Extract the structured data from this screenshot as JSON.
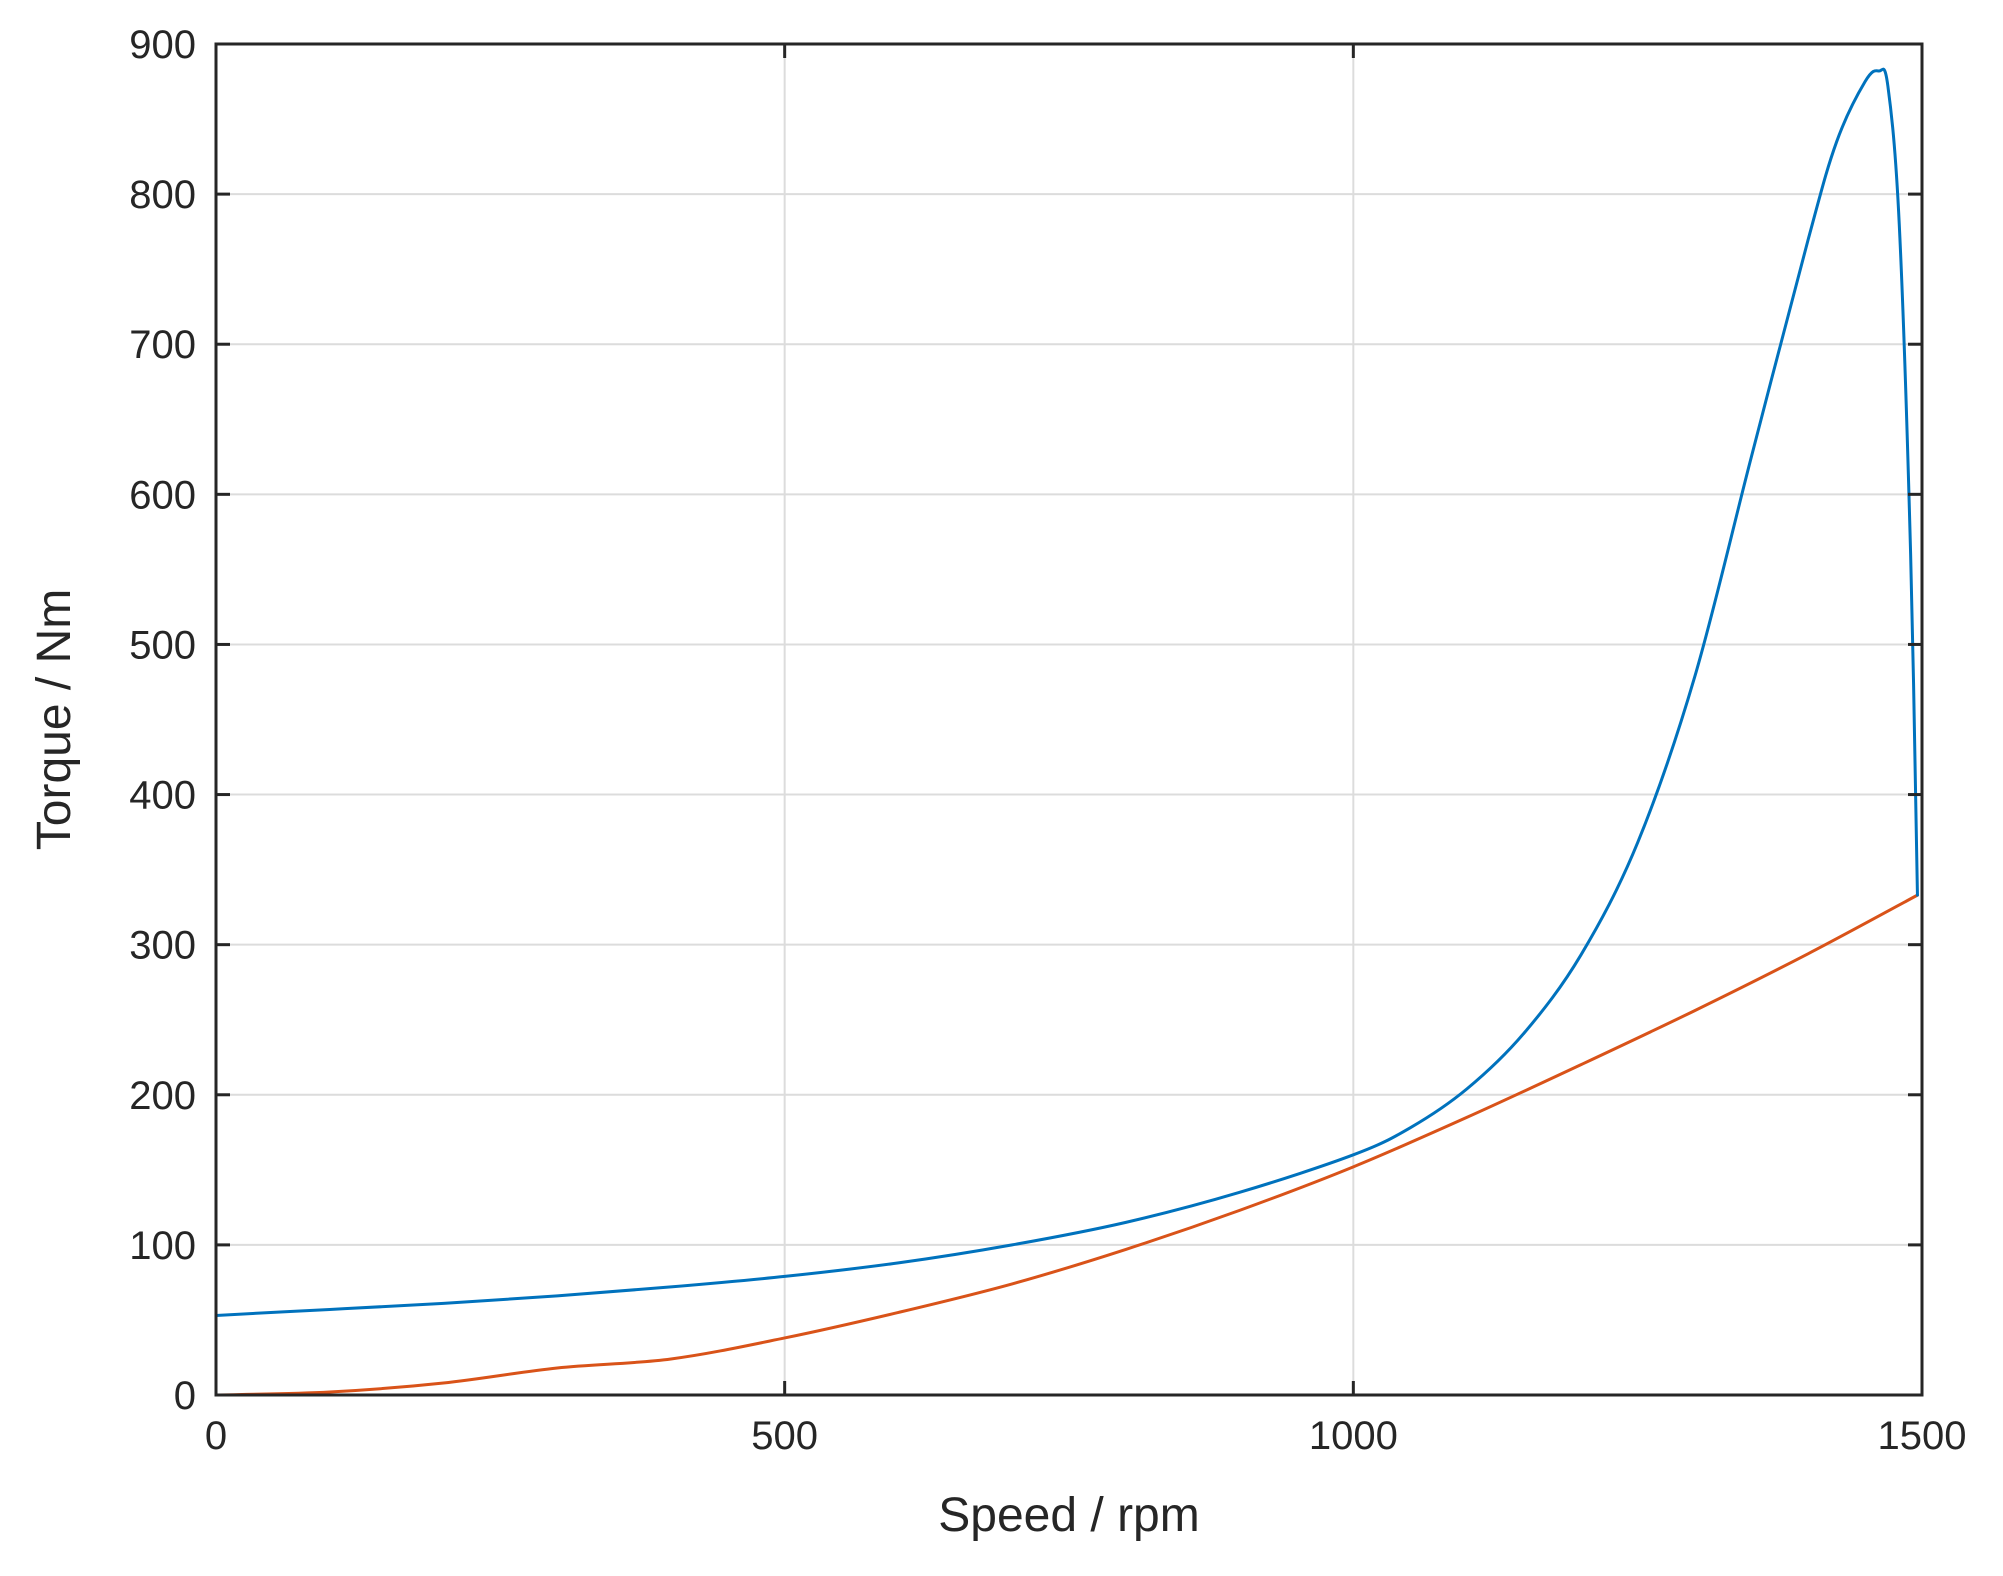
{
  "chart_data": {
    "type": "line",
    "xlabel": "Speed / rpm",
    "ylabel": "Torque / Nm",
    "xlim": [
      0,
      1500
    ],
    "ylim": [
      0,
      900
    ],
    "xticks": [
      0,
      500,
      1000,
      1500
    ],
    "yticks": [
      0,
      100,
      200,
      300,
      400,
      500,
      600,
      700,
      800,
      900
    ],
    "xtick_labels": [
      "0",
      "500",
      "1000",
      "1500"
    ],
    "ytick_labels": [
      "0",
      "100",
      "200",
      "300",
      "400",
      "500",
      "600",
      "700",
      "800",
      "900"
    ],
    "grid": true,
    "legend": false,
    "series": [
      {
        "color": "#0072BD",
        "x": [
          0,
          100,
          200,
          300,
          400,
          500,
          600,
          700,
          800,
          900,
          1000,
          1050,
          1100,
          1150,
          1200,
          1250,
          1300,
          1350,
          1400,
          1425,
          1450,
          1462,
          1470,
          1480,
          1490,
          1496
        ],
        "y": [
          53,
          57,
          61,
          66,
          72,
          79,
          88,
          100,
          115,
          135,
          160,
          178,
          204,
          241,
          293,
          368,
          478,
          625,
          770,
          835,
          875,
          882,
          872,
          780,
          560,
          333
        ]
      },
      {
        "color": "#D95319",
        "x": [
          0,
          100,
          200,
          300,
          400,
          500,
          600,
          700,
          800,
          900,
          1000,
          1100,
          1200,
          1300,
          1400,
          1496
        ],
        "y": [
          0,
          2,
          8,
          18,
          24,
          38,
          55,
          74,
          97,
          123,
          152,
          185,
          220,
          256,
          294,
          333
        ]
      }
    ]
  }
}
